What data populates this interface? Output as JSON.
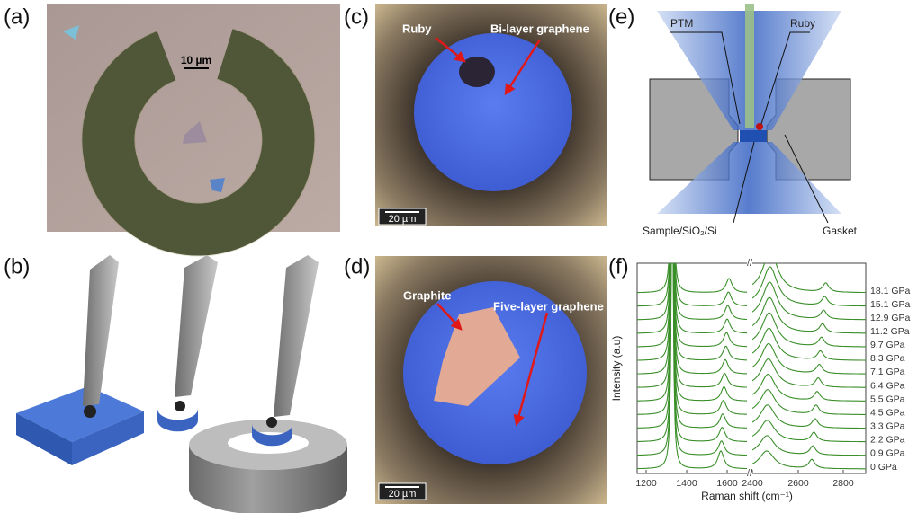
{
  "panels": {
    "a": {
      "label": "(a)",
      "scale_bar": "10 µm"
    },
    "b": {
      "label": "(b)"
    },
    "c": {
      "label": "(c)",
      "annotations": [
        "Ruby",
        "Bi-layer graphene"
      ],
      "scale_bar": "20 µm"
    },
    "d": {
      "label": "(d)",
      "annotations": [
        "Graphite",
        "Five-layer graphene"
      ],
      "scale_bar": "20 µm"
    },
    "e": {
      "label": "(e)",
      "annotations": [
        "PTM",
        "Ruby",
        "Sample/SiO₂/Si",
        "Gasket"
      ]
    },
    "f": {
      "label": "(f)",
      "y_label": "Intensity (a.u)",
      "x_label": "Raman shift (cm⁻¹)",
      "x_tick_labels": [
        "1200",
        "1400",
        "1600",
        "2400",
        "2600",
        "2800"
      ],
      "pressures": [
        "18.1 GPa",
        "15.1 GPa",
        "12.9 GPa",
        "11.2 GPa",
        "9.7 GPa",
        "8.3 GPa",
        "7.1 GPa",
        "6.4 GPa",
        "5.5 GPa",
        "4.5 GPa",
        "3.3 GPa",
        "2.2 GPa",
        "0.9 GPa",
        "0 GPa"
      ]
    }
  }
}
